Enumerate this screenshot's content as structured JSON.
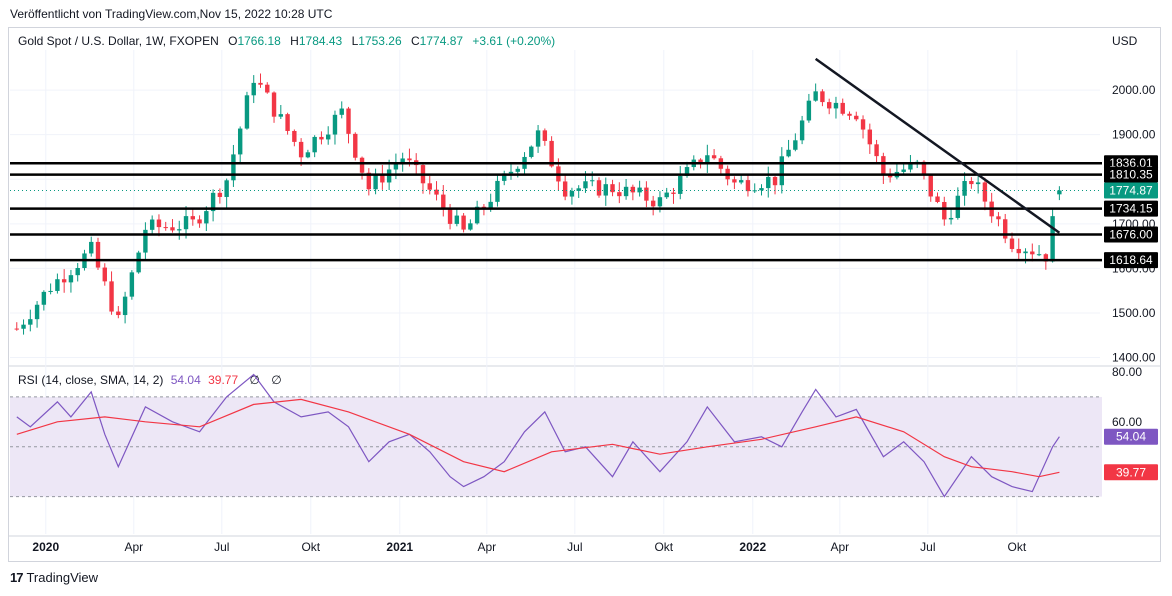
{
  "published": "Veröffentlicht von TradingView.com,Nov 15, 2022 10:28 UTC",
  "header": {
    "symbol": "Gold Spot / U.S. Dollar, 1W, FXOPEN",
    "o_label": "O",
    "o_value": "1766.18",
    "h_label": "H",
    "h_value": "1784.43",
    "l_label": "L",
    "l_value": "1753.26",
    "c_label": "C",
    "c_value": "1774.87",
    "change": "+3.61 (+0.20%)"
  },
  "currency": "USD",
  "rsi_legend": {
    "label": "RSI (14, close, SMA, 14, 2)",
    "rsi_value": "54.04",
    "sma_value": "39.77",
    "eye1": "∅",
    "eye2": "∅"
  },
  "brand": {
    "logo": "17",
    "name": "TradingView"
  },
  "colors": {
    "up": "#089981",
    "down": "#f23645",
    "rsi": "#7e57c2",
    "rsi_ma": "#f23645",
    "rsi_band": "#ede7f6",
    "level_line": "#000000"
  },
  "chart_data": [
    {
      "type": "candlestick",
      "title": "Gold Spot / U.S. Dollar, 1W, FXOPEN",
      "ylim": [
        1390,
        2090
      ],
      "y_ticks": [
        1400,
        1500,
        1600,
        1700,
        1800,
        1900,
        2000
      ],
      "x_ticks": [
        "2020",
        "Apr",
        "Jul",
        "Okt",
        "2021",
        "Apr",
        "Jul",
        "Okt",
        "2022",
        "Apr",
        "Jul",
        "Okt"
      ],
      "x_tick_dates": [
        "2020-01-01",
        "2020-04-01",
        "2020-07-01",
        "2020-10-01",
        "2021-01-01",
        "2021-04-01",
        "2021-07-01",
        "2021-10-01",
        "2022-01-01",
        "2022-04-01",
        "2022-07-01",
        "2022-10-01"
      ],
      "horizontal_levels": [
        1836.01,
        1810.35,
        1734.15,
        1676.0,
        1618.64
      ],
      "current_price": 1774.87,
      "trendline": {
        "start": [
          "2022-03-07",
          2070
        ],
        "end": [
          "2022-11-14",
          1680
        ]
      },
      "candle_anchors": [
        {
          "date": "2019-12-02",
          "close": 1465
        },
        {
          "date": "2020-01-06",
          "close": 1560
        },
        {
          "date": "2020-02-17",
          "close": 1640
        },
        {
          "date": "2020-03-16",
          "close": 1480
        },
        {
          "date": "2020-04-13",
          "close": 1690
        },
        {
          "date": "2020-06-01",
          "close": 1700
        },
        {
          "date": "2020-07-06",
          "close": 1800
        },
        {
          "date": "2020-08-03",
          "close": 2030
        },
        {
          "date": "2020-09-21",
          "close": 1860
        },
        {
          "date": "2020-11-02",
          "close": 1950
        },
        {
          "date": "2020-11-30",
          "close": 1780
        },
        {
          "date": "2021-01-04",
          "close": 1850
        },
        {
          "date": "2021-03-08",
          "close": 1680
        },
        {
          "date": "2021-04-12",
          "close": 1780
        },
        {
          "date": "2021-05-24",
          "close": 1900
        },
        {
          "date": "2021-06-21",
          "close": 1780
        },
        {
          "date": "2021-08-09",
          "close": 1780
        },
        {
          "date": "2021-09-27",
          "close": 1750
        },
        {
          "date": "2021-11-15",
          "close": 1860
        },
        {
          "date": "2021-12-13",
          "close": 1790
        },
        {
          "date": "2022-01-24",
          "close": 1800
        },
        {
          "date": "2022-03-07",
          "close": 1990
        },
        {
          "date": "2022-04-18",
          "close": 1950
        },
        {
          "date": "2022-05-16",
          "close": 1810
        },
        {
          "date": "2022-06-20",
          "close": 1830
        },
        {
          "date": "2022-07-18",
          "close": 1710
        },
        {
          "date": "2022-08-15",
          "close": 1800
        },
        {
          "date": "2022-09-26",
          "close": 1660
        },
        {
          "date": "2022-10-31",
          "close": 1630
        },
        {
          "date": "2022-11-14",
          "close": 1775
        }
      ]
    },
    {
      "type": "line",
      "title": "RSI (14, close, SMA, 14, 2)",
      "ylim": [
        15,
        80
      ],
      "y_ticks": [
        60,
        80
      ],
      "band": [
        30,
        70
      ],
      "midline": 50,
      "series": [
        {
          "name": "RSI",
          "color": "#7e57c2",
          "last": 54.04,
          "points": [
            [
              "2019-12-02",
              62
            ],
            [
              "2019-12-16",
              58
            ],
            [
              "2020-01-13",
              68
            ],
            [
              "2020-01-27",
              62
            ],
            [
              "2020-02-17",
              72
            ],
            [
              "2020-03-02",
              55
            ],
            [
              "2020-03-16",
              42
            ],
            [
              "2020-04-13",
              66
            ],
            [
              "2020-05-11",
              60
            ],
            [
              "2020-06-08",
              56
            ],
            [
              "2020-07-06",
              70
            ],
            [
              "2020-08-03",
              79
            ],
            [
              "2020-08-24",
              68
            ],
            [
              "2020-09-21",
              62
            ],
            [
              "2020-10-19",
              64
            ],
            [
              "2020-11-09",
              58
            ],
            [
              "2020-11-30",
              44
            ],
            [
              "2020-12-21",
              52
            ],
            [
              "2021-01-11",
              55
            ],
            [
              "2021-02-01",
              48
            ],
            [
              "2021-02-22",
              38
            ],
            [
              "2021-03-08",
              34
            ],
            [
              "2021-03-29",
              38
            ],
            [
              "2021-04-19",
              44
            ],
            [
              "2021-05-10",
              56
            ],
            [
              "2021-05-31",
              64
            ],
            [
              "2021-06-21",
              48
            ],
            [
              "2021-07-12",
              50
            ],
            [
              "2021-08-09",
              38
            ],
            [
              "2021-08-30",
              52
            ],
            [
              "2021-09-27",
              40
            ],
            [
              "2021-10-25",
              52
            ],
            [
              "2021-11-15",
              66
            ],
            [
              "2021-12-13",
              52
            ],
            [
              "2022-01-10",
              54
            ],
            [
              "2022-01-31",
              50
            ],
            [
              "2022-02-21",
              64
            ],
            [
              "2022-03-07",
              73
            ],
            [
              "2022-03-28",
              62
            ],
            [
              "2022-04-18",
              65
            ],
            [
              "2022-05-16",
              46
            ],
            [
              "2022-06-06",
              52
            ],
            [
              "2022-06-27",
              44
            ],
            [
              "2022-07-18",
              30
            ],
            [
              "2022-08-15",
              46
            ],
            [
              "2022-09-05",
              38
            ],
            [
              "2022-09-26",
              34
            ],
            [
              "2022-10-17",
              32
            ],
            [
              "2022-11-07",
              50
            ],
            [
              "2022-11-14",
              54.04
            ]
          ]
        },
        {
          "name": "SMA",
          "color": "#f23645",
          "last": 39.77,
          "points": [
            [
              "2019-12-02",
              55
            ],
            [
              "2020-01-13",
              60
            ],
            [
              "2020-03-02",
              62
            ],
            [
              "2020-04-13",
              60
            ],
            [
              "2020-06-08",
              58
            ],
            [
              "2020-08-03",
              67
            ],
            [
              "2020-09-21",
              69
            ],
            [
              "2020-11-09",
              64
            ],
            [
              "2021-01-11",
              55
            ],
            [
              "2021-03-08",
              44
            ],
            [
              "2021-04-19",
              40
            ],
            [
              "2021-06-07",
              48
            ],
            [
              "2021-08-09",
              51
            ],
            [
              "2021-09-27",
              47
            ],
            [
              "2021-11-15",
              50
            ],
            [
              "2022-01-10",
              53
            ],
            [
              "2022-03-07",
              58
            ],
            [
              "2022-04-18",
              62
            ],
            [
              "2022-06-06",
              56
            ],
            [
              "2022-07-18",
              46
            ],
            [
              "2022-08-15",
              42
            ],
            [
              "2022-09-26",
              40
            ],
            [
              "2022-10-24",
              38
            ],
            [
              "2022-11-14",
              39.77
            ]
          ]
        }
      ]
    }
  ]
}
